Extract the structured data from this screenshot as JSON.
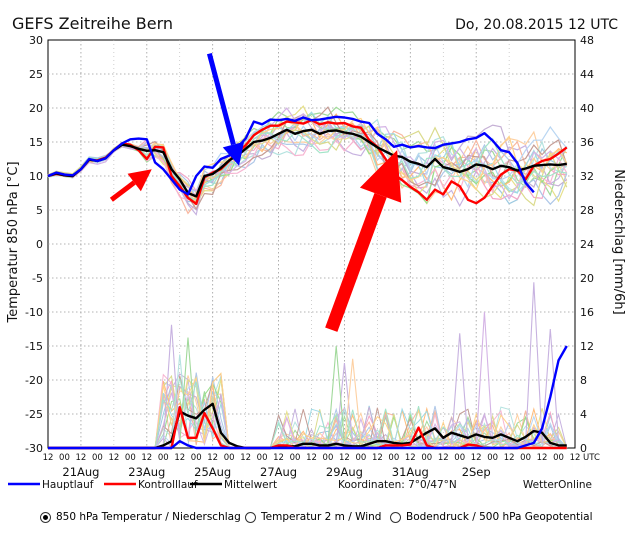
{
  "chart_data": {
    "type": "line",
    "title": "GEFS Zeitreihe Bern",
    "date": "Do, 20.08.2015",
    "run": "12 UTC",
    "ylabel": "Temperatur 850 hPa [°C]",
    "y2label": "Niederschlag [mm/6h]",
    "ylim": [
      -30,
      30
    ],
    "y2lim": [
      0,
      48
    ],
    "yticks": [
      30,
      25,
      20,
      15,
      10,
      5,
      0,
      -5,
      -10,
      -15,
      -20,
      -25,
      -30
    ],
    "y2ticks": [
      48,
      44,
      40,
      36,
      32,
      28,
      24,
      20,
      16,
      12,
      8,
      4,
      0
    ],
    "xlim": [
      0,
      64
    ],
    "hour_labels": [
      "12",
      "00",
      "12",
      "00",
      "12",
      "00",
      "12",
      "00",
      "12",
      "00",
      "12",
      "00",
      "12",
      "00",
      "12",
      "00",
      "12",
      "00",
      "12",
      "00",
      "12",
      "00",
      "12",
      "00",
      "12",
      "00",
      "12",
      "00",
      "12",
      "00",
      "12",
      "00",
      "12",
      "UTC"
    ],
    "date_labels": [
      {
        "label": "21Aug",
        "x": 4
      },
      {
        "label": "23Aug",
        "x": 12
      },
      {
        "label": "25Aug",
        "x": 20
      },
      {
        "label": "27Aug",
        "x": 28
      },
      {
        "label": "29Aug",
        "x": 36
      },
      {
        "label": "31Aug",
        "x": 44
      },
      {
        "label": "2Sep",
        "x": 52
      }
    ],
    "legend": [
      {
        "name": "Hauptlauf",
        "color": "#0000ff"
      },
      {
        "name": "Kontrolllauf",
        "color": "#ff0000"
      },
      {
        "name": "Mittelwert",
        "color": "#000000"
      }
    ],
    "coords": "Koordinaten: 7°0/47°N",
    "brand": "WetterOnline",
    "series": [
      {
        "name": "Hauptlauf",
        "color": "#0000ff",
        "values": [
          10,
          10.5,
          10.2,
          10.1,
          11,
          12.5,
          12.2,
          12.6,
          13.8,
          14.8,
          15.4,
          15.5,
          15.4,
          12,
          11,
          9.5,
          8,
          7.3,
          10,
          11.4,
          11.2,
          12.5,
          13,
          14.2,
          15.5,
          18,
          17.6,
          18.3,
          18.2,
          18.4,
          18.1,
          18.6,
          18.2,
          18.3,
          18.5,
          18.7,
          18.6,
          18.4,
          18,
          17.8,
          16.2,
          15.4,
          14.3,
          14.6,
          14.2,
          14.4,
          14.2,
          14.1,
          14.6,
          14.8,
          15,
          15.4,
          15.6,
          16.3,
          15.2,
          13.8,
          13.5,
          11.9,
          9,
          7.6
        ]
      },
      {
        "name": "Kontrolllauf",
        "color": "#ff0000",
        "values": [
          10,
          10.3,
          10.1,
          10,
          11,
          12.4,
          12.3,
          12.7,
          13.8,
          14.8,
          14.6,
          13.8,
          12.5,
          14.3,
          14.2,
          10,
          8.5,
          6.8,
          5.9,
          9.8,
          10.5,
          11,
          12.2,
          13.5,
          14.5,
          16,
          16.8,
          17.4,
          17.4,
          18,
          17.9,
          17.7,
          18.2,
          17.6,
          17.9,
          17.7,
          17.8,
          17.3,
          17.1,
          15.3,
          14.3,
          12.5,
          10.3,
          9.4,
          8.4,
          7.6,
          6.5,
          8,
          7.3,
          9.2,
          8.5,
          6.5,
          6,
          6.8,
          8.5,
          10.2,
          11,
          10.8,
          9.5,
          11.5,
          12.2,
          12.5,
          13.3,
          14.2
        ]
      },
      {
        "name": "Mittelwert",
        "color": "#000000",
        "values": [
          10,
          10.4,
          10.1,
          10,
          11,
          12.4,
          12.2,
          12.6,
          13.8,
          14.6,
          14.4,
          14,
          13.7,
          13.8,
          13.5,
          11,
          9.5,
          7.5,
          7,
          10,
          10.3,
          11.2,
          12.3,
          13,
          14,
          15,
          15.2,
          15.6,
          16.2,
          16.8,
          16.2,
          16.6,
          16.8,
          16.2,
          16.6,
          16.7,
          16.4,
          16.2,
          15.8,
          15,
          14.2,
          13.6,
          13,
          12.8,
          12.1,
          11.8,
          11.3,
          12.5,
          11.3,
          11,
          10.6,
          11,
          11.7,
          11.5,
          11,
          11.5,
          11.3,
          10.8,
          11.1,
          11.5,
          11.6,
          11.7,
          11.6,
          11.8
        ]
      },
      {
        "name": "Mittelwert Niederschlag",
        "color": "#000000",
        "axis": "y2",
        "values": [
          0,
          0,
          0,
          0,
          0,
          0,
          0,
          0,
          0,
          0,
          0,
          0,
          0,
          0,
          0.3,
          0.8,
          4.3,
          3.8,
          3.5,
          4.5,
          5.2,
          1.8,
          0.6,
          0.2,
          0,
          0,
          0,
          0,
          0.2,
          0.2,
          0.2,
          0.5,
          0.5,
          0.3,
          0.3,
          0.5,
          0.3,
          0.2,
          0.2,
          0.5,
          0.8,
          0.8,
          0.6,
          0.5,
          0.6,
          1.2,
          1.8,
          2.3,
          1.2,
          1.8,
          1.5,
          1.2,
          1.6,
          1.3,
          1.2,
          1.6,
          1.2,
          0.8,
          1.3,
          2,
          1.8,
          0.6,
          0.3,
          0.3
        ]
      },
      {
        "name": "Kontrolllauf Niederschlag",
        "color": "#ff0000",
        "axis": "y2",
        "values": [
          0,
          0,
          0,
          0,
          0,
          0,
          0,
          0,
          0,
          0,
          0,
          0,
          0,
          0,
          0,
          0,
          4.8,
          1.2,
          1.2,
          4.1,
          2.3,
          0.3,
          0,
          0,
          0,
          0,
          0,
          0,
          0.3,
          0.3,
          0,
          0,
          0,
          0,
          0,
          0,
          0,
          0,
          0,
          0,
          0,
          0.3,
          0.3,
          0.3,
          0.4,
          2.4,
          0.3,
          0,
          0,
          0,
          0,
          0.4,
          0.3,
          0,
          0,
          0,
          0,
          0,
          0,
          0,
          0,
          0,
          0,
          0
        ]
      },
      {
        "name": "Hauptlauf Niederschlag",
        "color": "#0000ff",
        "axis": "y2",
        "values": [
          0,
          0,
          0,
          0,
          0,
          0,
          0,
          0,
          0,
          0,
          0,
          0,
          0,
          0,
          0,
          0,
          0.8,
          0.3,
          0,
          0,
          0,
          0,
          0,
          0,
          0,
          0,
          0,
          0,
          0,
          0,
          0,
          0,
          0,
          0,
          0,
          0,
          0,
          0,
          0,
          0,
          0,
          0,
          0,
          0,
          0,
          0,
          0,
          0,
          0,
          0,
          0,
          0,
          0,
          0,
          0,
          0,
          0,
          0,
          0.3,
          0.6,
          2.3,
          6,
          10.3,
          12
        ]
      }
    ],
    "annotations": [
      {
        "type": "arrow",
        "color": "#ff0000",
        "from": [
          7.7,
          6.5
        ],
        "to": [
          12.6,
          11
        ]
      },
      {
        "type": "arrow",
        "color": "#0000ff",
        "from": [
          19.6,
          28
        ],
        "to": [
          23.2,
          11.5
        ]
      },
      {
        "type": "arrow",
        "color": "#ff0000",
        "from": [
          34.4,
          -12.6
        ],
        "to": [
          42.4,
          13.8
        ]
      }
    ]
  },
  "radio_options": [
    {
      "label": "850 hPa Temperatur / Niederschlag",
      "selected": true
    },
    {
      "label": "Temperatur 2 m / Wind",
      "selected": false
    },
    {
      "label": "Bodendruck / 500 hPa Geopotential",
      "selected": false
    }
  ]
}
